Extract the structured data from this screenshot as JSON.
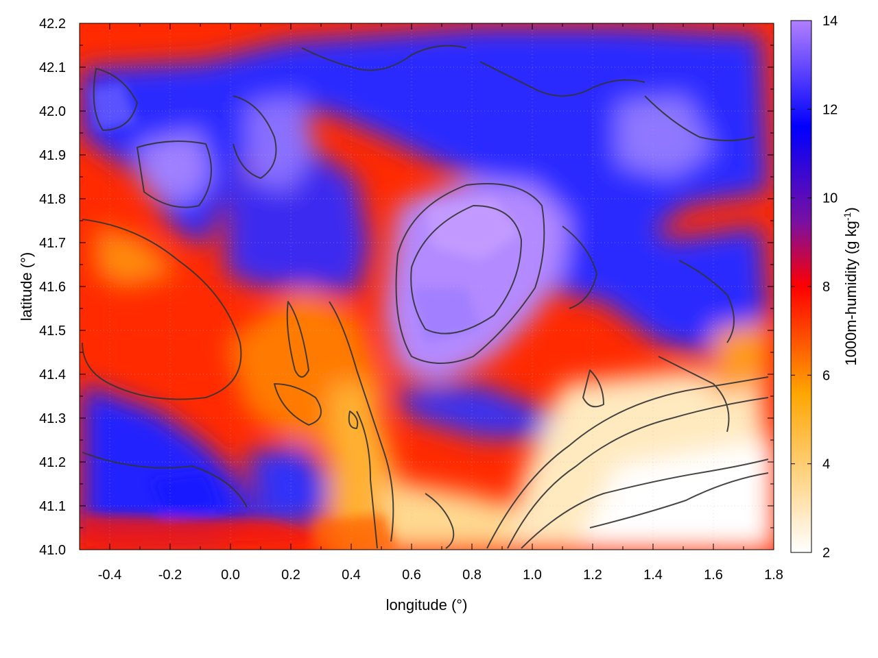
{
  "chart_data": {
    "type": "heatmap",
    "xlabel": "longitude (°)",
    "ylabel": "latitude (°)",
    "colorbar_label": "1000m-humidity (g kg",
    "colorbar_label_sup": "-1",
    "colorbar_label_end": ")",
    "xlim": [
      -0.5,
      1.8
    ],
    "ylim": [
      41.0,
      42.2
    ],
    "x_ticks": [
      "-0.4",
      "-0.2",
      "0.0",
      "0.2",
      "0.4",
      "0.6",
      "0.8",
      "1.0",
      "1.2",
      "1.4",
      "1.6",
      "1.8"
    ],
    "x_tick_values": [
      -0.4,
      -0.2,
      0.0,
      0.2,
      0.4,
      0.6,
      0.8,
      1.0,
      1.2,
      1.4,
      1.6,
      1.8
    ],
    "y_ticks": [
      "41.0",
      "41.1",
      "41.2",
      "41.3",
      "41.4",
      "41.5",
      "41.6",
      "41.7",
      "41.8",
      "41.9",
      "42.0",
      "42.1",
      "42.2"
    ],
    "y_tick_values": [
      41.0,
      41.1,
      41.2,
      41.3,
      41.4,
      41.5,
      41.6,
      41.7,
      41.8,
      41.9,
      42.0,
      42.1,
      42.2
    ],
    "colorbar_range": [
      2,
      14
    ],
    "colorbar_ticks": [
      "2",
      "4",
      "6",
      "8",
      "10",
      "12",
      "14"
    ],
    "colorbar_tick_values": [
      2,
      4,
      6,
      8,
      10,
      12,
      14
    ],
    "colormap": [
      "#ffffff",
      "#ffa500",
      "#ff0000",
      "#0000ff",
      "#b17fff"
    ],
    "grid": true,
    "contour_color": "#333333"
  }
}
